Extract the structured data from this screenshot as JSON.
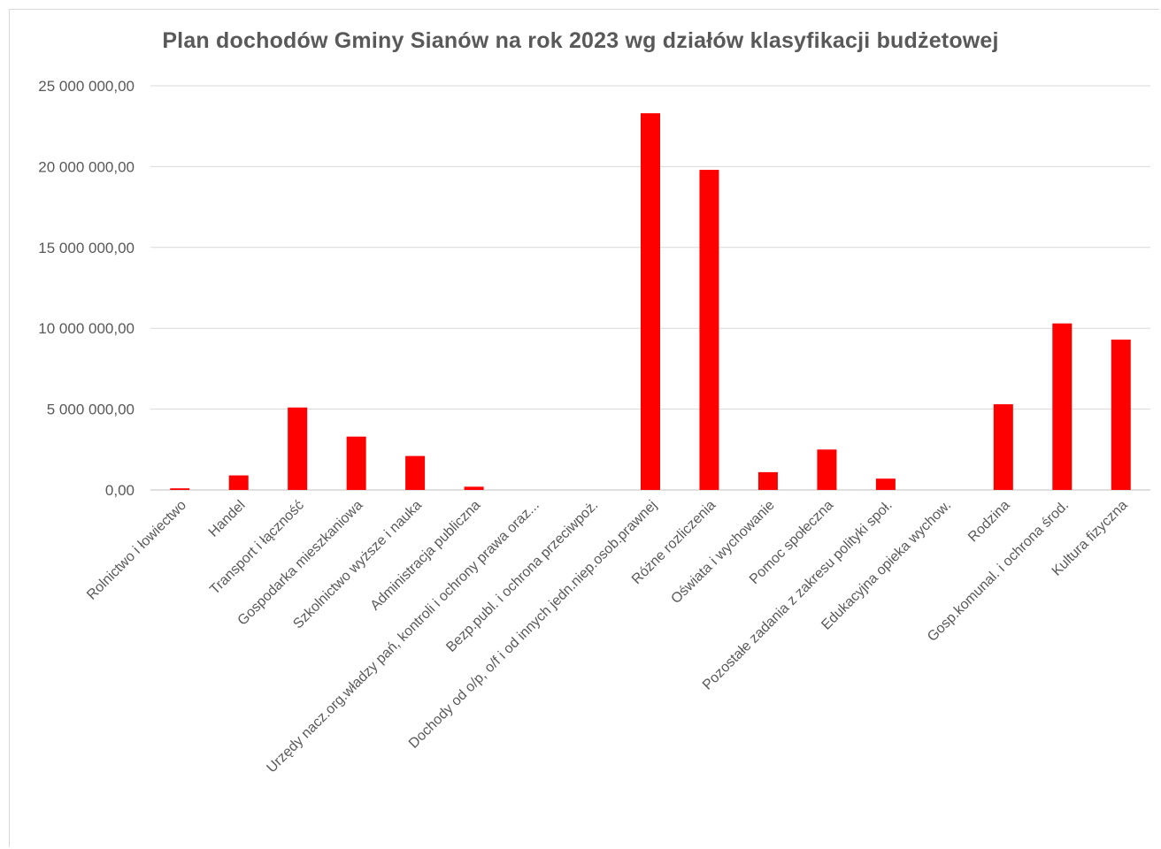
{
  "chart_data": {
    "type": "bar",
    "title": "Plan dochodów  Gminy Sianów  na rok 2023 wg działów  klasyfikacji  budżetowej",
    "categories": [
      "Rolnictwo i łowiectwo",
      "Handel",
      "Transport i łączność",
      "Gospodarka mieszkaniowa",
      "Szkolnictwo wyższe i nauka",
      "Administracja publiczna",
      "Urzędy nacz.org.władzy pań, kontroli i ochrony prawa oraz...",
      "Bezp.publ. i ochrona przeciwpoż.",
      "Dochody od o/p, o/f i od innych jedn.niep.osob.prawnej",
      "Różne rozliczenia",
      "Oświata i wychowanie",
      "Pomoc społeczna",
      "Pozostałe zadania z zakresu polityki społ.",
      "Edukacyjna opieka wychow.",
      "Rodzina",
      "Gosp.komunal. i ochrona środ.",
      "Kultura fizyczna"
    ],
    "values": [
      100000,
      900000,
      5100000,
      3300000,
      2100000,
      200000,
      0,
      0,
      23300000,
      19800000,
      1100000,
      2500000,
      700000,
      0,
      5300000,
      10300000,
      9300000
    ],
    "ylim": [
      0,
      25000000
    ],
    "yticks": [
      "0,00",
      "5 000 000,00",
      "10 000 000,00",
      "15 000 000,00",
      "20 000 000,00",
      "25 000 000,00"
    ],
    "ytick_values": [
      0,
      5000000,
      10000000,
      15000000,
      20000000,
      25000000
    ],
    "grid": true,
    "legend": "none",
    "colors": {
      "bar": "#ff0000",
      "grid": "#d9d9d9",
      "axis": "#bfbfbf",
      "text": "#595959"
    }
  }
}
